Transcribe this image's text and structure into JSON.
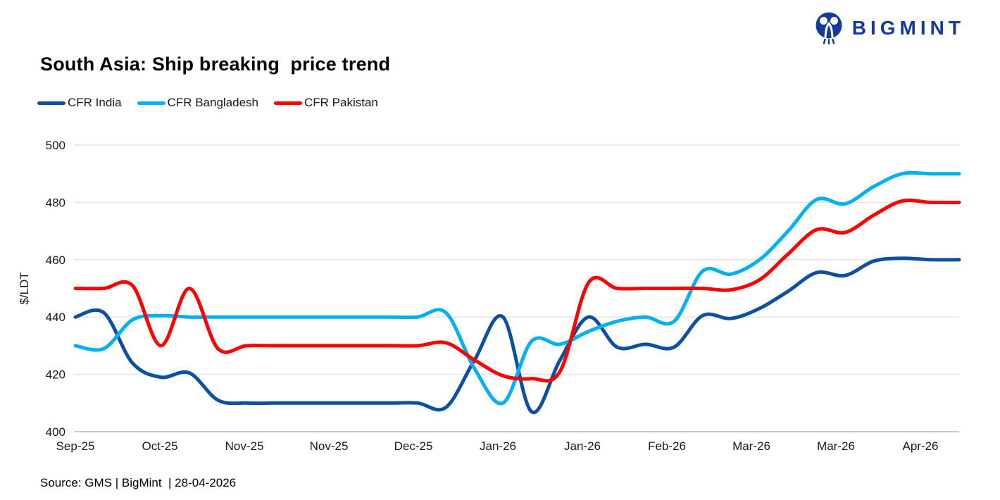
{
  "logo": {
    "text": "BIGMINT",
    "color": "#16399b"
  },
  "title": "South Asia: Ship breaking  price trend",
  "source": "Source: GMS | BigMint  | 28-04-2026",
  "chart_data": {
    "type": "line",
    "title": "South Asia: Ship breaking price trend",
    "xlabel": "",
    "ylabel": "$/LDT",
    "ylim": [
      400,
      500
    ],
    "yticks": [
      400,
      420,
      440,
      460,
      480,
      500
    ],
    "grid": "horizontal",
    "grid_color": "#e4e4e4",
    "axis_color": "#c9c9c9",
    "text_color": "#1a1a1a",
    "legend_position": "top-left",
    "x_labels": [
      "Sep-25",
      "Oct-25",
      "Nov-25",
      "Nov-25",
      "Dec-25",
      "Jan-26",
      "Jan-26",
      "Feb-26",
      "Mar-26",
      "Mar-26",
      "Apr-26"
    ],
    "points_per_label": 3,
    "series": [
      {
        "name": "CFR India",
        "color": "#0f4fa0",
        "values": [
          440,
          441.5,
          424,
          419,
          420.5,
          411,
          410,
          410,
          410,
          410,
          410,
          410,
          410,
          408.5,
          425,
          440,
          407,
          425,
          440,
          429.5,
          430.5,
          429.5,
          440.5,
          439.5,
          443,
          449,
          455.5,
          454.5,
          459.5,
          460.5,
          460,
          460
        ]
      },
      {
        "name": "CFR Bangladesh",
        "color": "#00b0f0",
        "values": [
          430,
          429,
          439,
          440.5,
          440,
          440,
          440,
          440,
          440,
          440,
          440,
          440,
          440,
          441.5,
          422,
          410,
          431.5,
          430.5,
          435,
          438.5,
          440,
          438.5,
          456,
          455,
          460,
          470,
          481,
          479.5,
          485.5,
          490,
          490,
          490
        ]
      },
      {
        "name": "CFR Pakistan",
        "color": "#fe0000",
        "values": [
          450,
          450,
          451,
          430,
          450,
          429,
          430,
          430,
          430,
          430,
          430,
          430,
          430,
          431,
          425,
          419.5,
          418.5,
          421,
          452,
          450,
          450,
          450,
          450,
          449.5,
          453,
          462,
          470.5,
          469.5,
          475.5,
          480.5,
          480,
          480
        ]
      }
    ]
  }
}
